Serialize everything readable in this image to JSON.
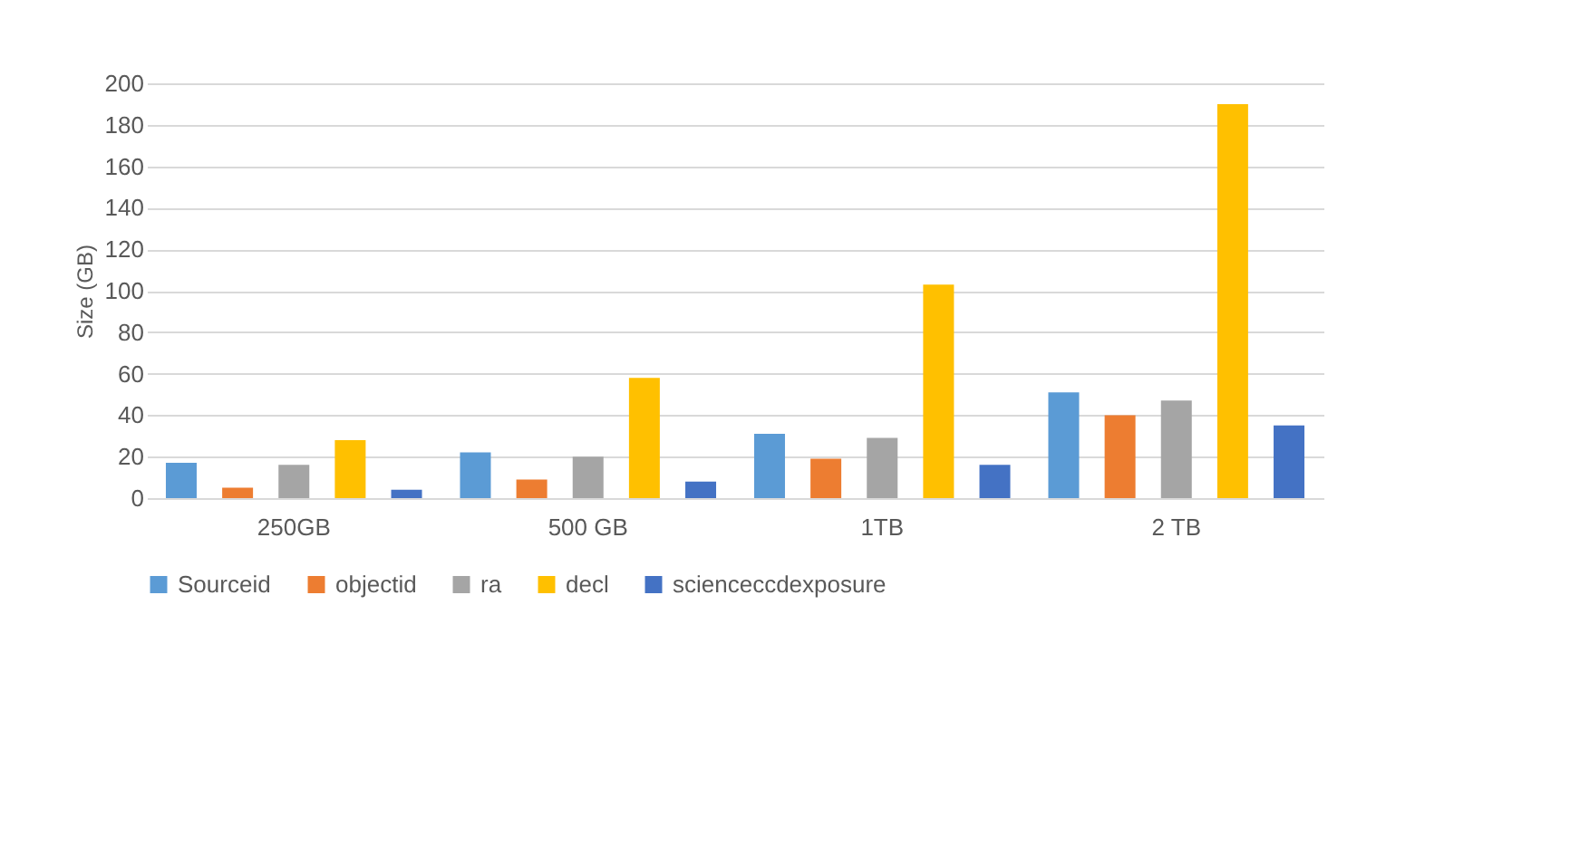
{
  "chart_data": {
    "type": "bar",
    "ylabel": "Size (GB)",
    "categories": [
      "250GB",
      "500 GB",
      "1TB",
      "2 TB"
    ],
    "series": [
      {
        "name": "Sourceid",
        "color": "#5b9bd5",
        "values": [
          17,
          22,
          31,
          51
        ]
      },
      {
        "name": "objectid",
        "color": "#ed7d31",
        "values": [
          5,
          9,
          19,
          40
        ]
      },
      {
        "name": "ra",
        "color": "#a5a5a5",
        "values": [
          16,
          20,
          29,
          47
        ]
      },
      {
        "name": "decl",
        "color": "#ffc000",
        "values": [
          28,
          58,
          103,
          190
        ]
      },
      {
        "name": "scienceccdexposure",
        "color": "#4472c4",
        "values": [
          4,
          8,
          16,
          35
        ]
      }
    ],
    "ylim": [
      0,
      200
    ],
    "yticks": [
      0,
      20,
      40,
      60,
      80,
      100,
      120,
      140,
      160,
      180,
      200
    ],
    "grid": "y",
    "legend": "bottom"
  }
}
